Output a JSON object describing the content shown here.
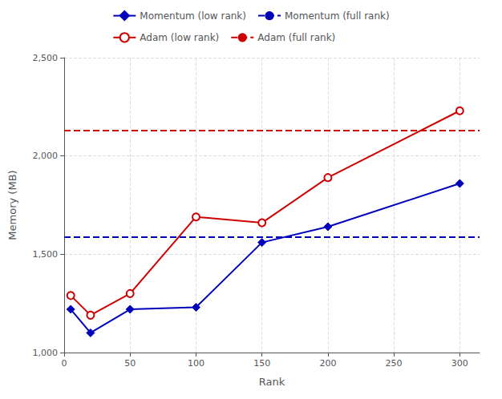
{
  "chart_data": {
    "type": "line",
    "xlabel": "Rank",
    "ylabel": "Memory (MB)",
    "x": [
      5,
      20,
      50,
      100,
      150,
      200,
      300
    ],
    "series": [
      {
        "name": "Momentum (low rank)",
        "type": "line",
        "color": "#0000bb",
        "marker": "diamond",
        "line_style": "solid",
        "values": [
          1220,
          1100,
          1220,
          1230,
          1560,
          1640,
          1860
        ]
      },
      {
        "name": "Momentum (full rank)",
        "type": "hline",
        "color": "#0000bb",
        "line_style": "dashed",
        "y": 1590
      },
      {
        "name": "Adam (low rank)",
        "type": "line",
        "color": "#cc0000",
        "marker": "open_circle",
        "line_style": "solid",
        "values": [
          1290,
          1190,
          1300,
          1690,
          1660,
          1890,
          2230
        ]
      },
      {
        "name": "Adam (full rank)",
        "type": "hline",
        "color": "#cc0000",
        "line_style": "dashed",
        "y": 2130
      }
    ],
    "xlim": [
      0,
      315
    ],
    "xticks": [
      0,
      50,
      100,
      150,
      200,
      250,
      300
    ],
    "ylim": [
      1000,
      2500
    ],
    "yticks": [
      {
        "value": 1000,
        "label": "1,000"
      },
      {
        "value": 1500,
        "label": "1,500"
      },
      {
        "value": 2000,
        "label": "2,000"
      },
      {
        "value": 2500,
        "label": "2,500"
      }
    ],
    "grid": true,
    "legend": "top"
  }
}
